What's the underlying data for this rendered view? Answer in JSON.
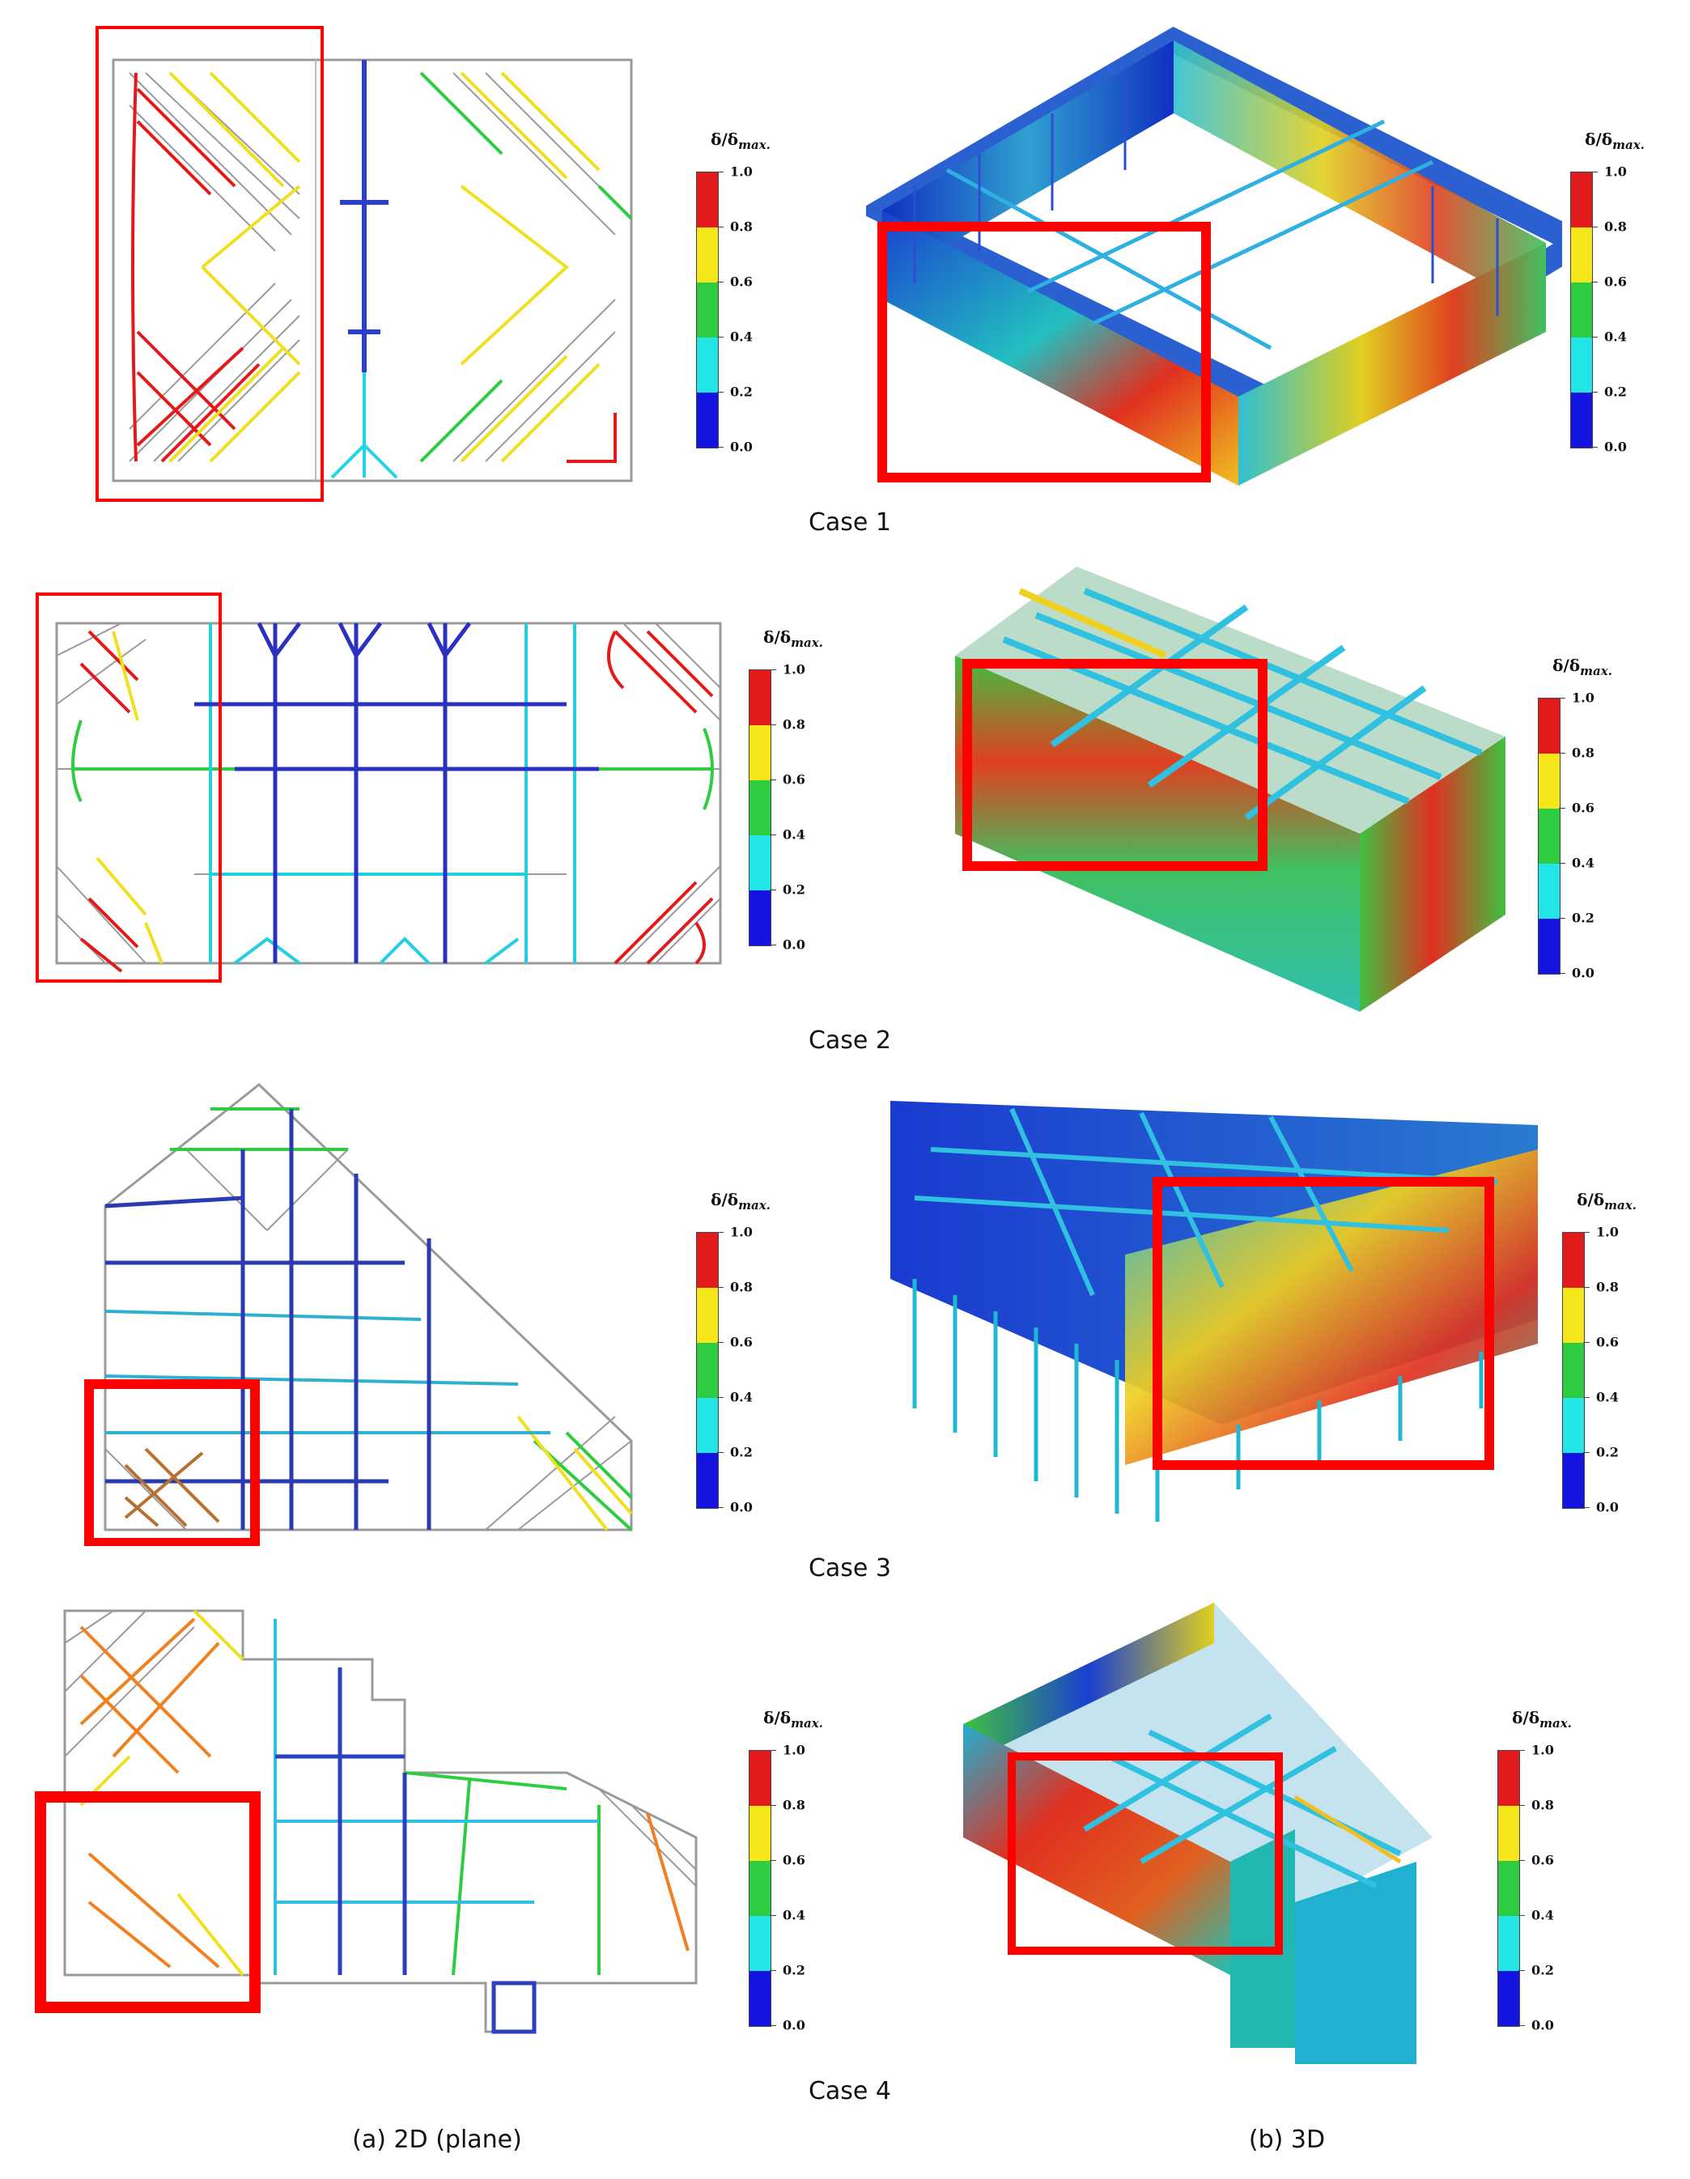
{
  "colorbar": {
    "title_main": "δ/δ",
    "title_sub": "max.",
    "ticks": [
      "1.0",
      "0.8",
      "0.6",
      "0.4",
      "0.2",
      "0.0"
    ],
    "colors": [
      "#e31a1c",
      "#f5e61a",
      "#2ecc40",
      "#22e5e5",
      "#1414e0"
    ]
  },
  "cases": [
    {
      "caption": "Case 1"
    },
    {
      "caption": "Case 2"
    },
    {
      "caption": "Case 3"
    },
    {
      "caption": "Case 4"
    }
  ],
  "column_captions": {
    "left": "(a) 2D (plane)",
    "right": "(b) 3D"
  },
  "highlight_color": "#ff0000"
}
